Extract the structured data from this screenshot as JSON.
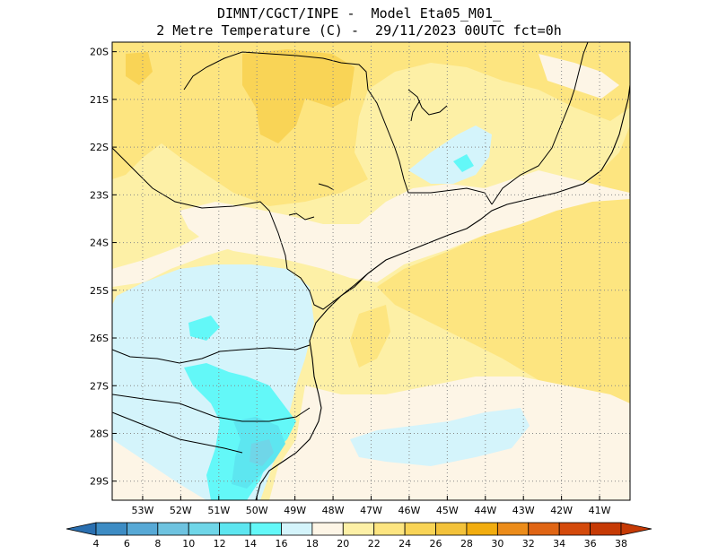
{
  "header": {
    "line1": "DIMNT/CGCT/INPE -  Model Eta05_M01_",
    "line2": "2 Metre Temperature (C) -  29/11/2023 00UTC fct=0h"
  },
  "map": {
    "lon_range": [
      -53.8,
      -40.2
    ],
    "lat_range": [
      -29.4,
      -19.8
    ],
    "lat_labels": [
      "20S",
      "21S",
      "22S",
      "23S",
      "24S",
      "25S",
      "26S",
      "27S",
      "28S",
      "29S"
    ],
    "lon_labels": [
      "53W",
      "52W",
      "51W",
      "50W",
      "49W",
      "48W",
      "47W",
      "46W",
      "45W",
      "44W",
      "43W",
      "42W",
      "41W"
    ],
    "gridlines": "dotted"
  },
  "colorbar": {
    "labels": [
      "4",
      "6",
      "8",
      "10",
      "12",
      "14",
      "16",
      "18",
      "20",
      "22",
      "24",
      "26",
      "28",
      "30",
      "32",
      "34",
      "36",
      "38"
    ],
    "colors": [
      "#2a6fb0",
      "#3d8cc4",
      "#57a9d6",
      "#6ec3e0",
      "#6fd6e8",
      "#5de6f0",
      "#63f8f8",
      "#d4f4fb",
      "#fdf5e6",
      "#fdf0a6",
      "#fde580",
      "#f9d456",
      "#f3c23a",
      "#f2ad0f",
      "#ec8c1a",
      "#e06514",
      "#d44a0b",
      "#c63a05"
    ]
  },
  "field_colors": {
    "t18_20": "#d4f4fb",
    "t16_18": "#63f8f8",
    "t14_16": "#5de6f0",
    "t12_14": "#6fd6e8",
    "t20_22": "#fdf5e6",
    "t22_24": "#fdf0a6",
    "t24_26": "#fde580",
    "t26_28": "#f9d456"
  }
}
